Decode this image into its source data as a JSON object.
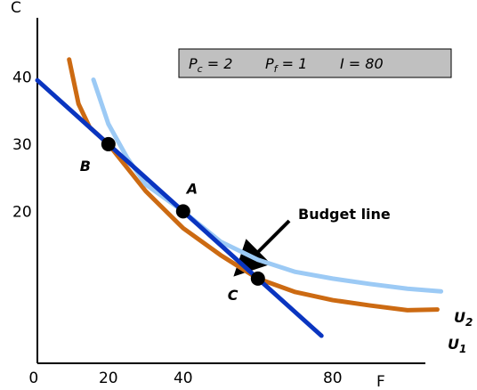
{
  "chart_data": {
    "type": "line",
    "x_label": "F",
    "y_label": "C",
    "xlim": [
      1,
      111
    ],
    "ylim": [
      -2.6,
      48.8
    ],
    "xticks": [
      0,
      20,
      40,
      80
    ],
    "yticks": [
      20,
      30,
      40
    ],
    "series": [
      {
        "name": "Budget line",
        "color": "#0a35c0",
        "x": [
          1,
          77
        ],
        "values": [
          39.5,
          1.5
        ]
      },
      {
        "name": "U1",
        "color": "#cc6a12",
        "x": [
          9.5,
          12,
          15,
          20,
          30,
          40,
          50,
          60,
          70,
          80,
          90,
          100,
          108
        ],
        "values": [
          42.6,
          36,
          32.5,
          30,
          23,
          17.5,
          13.5,
          10,
          8,
          6.8,
          6,
          5.3,
          5.4
        ]
      },
      {
        "name": "U2",
        "color": "#9ccaf5",
        "x": [
          16,
          20,
          25,
          30,
          40,
          50,
          60,
          70,
          80,
          90,
          100,
          109
        ],
        "values": [
          39.6,
          33,
          28,
          24,
          20,
          15.5,
          12.8,
          11,
          10,
          9.2,
          8.5,
          8.1
        ]
      }
    ],
    "points": {
      "labels": [
        "B",
        "A",
        "C"
      ],
      "x": [
        20,
        40,
        60
      ],
      "values": [
        30,
        20,
        10
      ]
    },
    "curve_labels": [
      {
        "main": "U",
        "sub": "2"
      },
      {
        "main": "U",
        "sub": "1"
      }
    ],
    "annotation": "Budget line",
    "price_box": [
      {
        "main": "P",
        "sub": "c",
        "rest": " = 2"
      },
      {
        "main": "P",
        "sub": "f",
        "rest": " = 1"
      },
      {
        "main": "I",
        "sub": "",
        "rest": " = 80"
      }
    ]
  }
}
